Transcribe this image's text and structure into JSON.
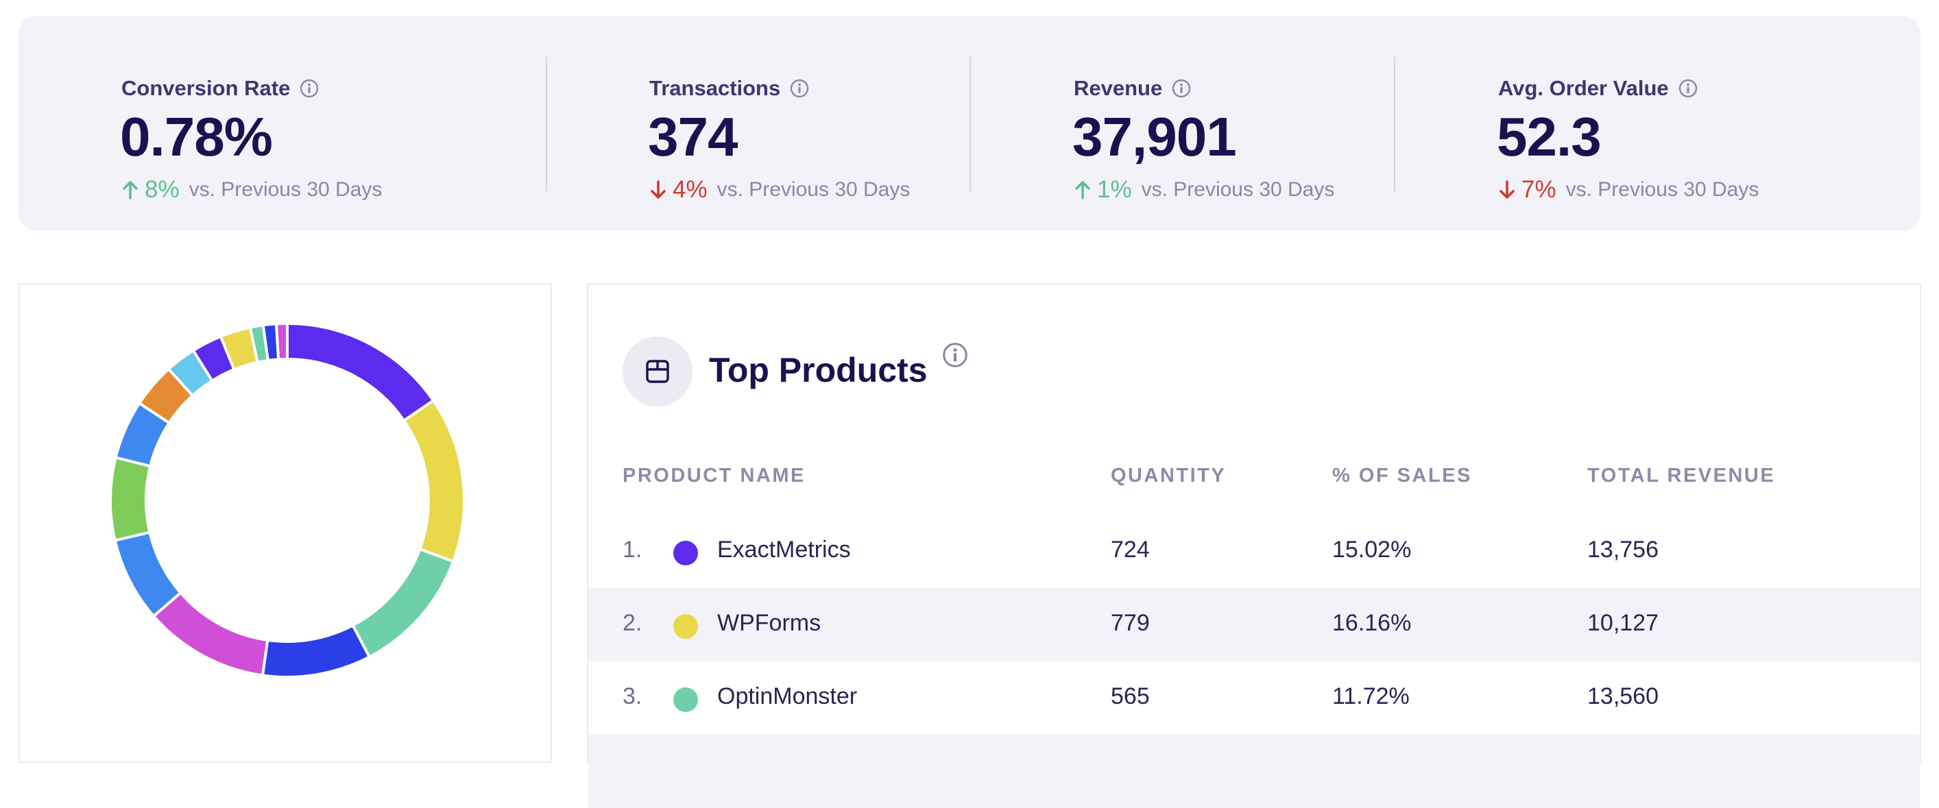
{
  "kpis": [
    {
      "label": "Conversion Rate",
      "value": "0.78%",
      "direction": "up",
      "change": "8%",
      "comparison": "vs. Previous 30 Days"
    },
    {
      "label": "Transactions",
      "value": "374",
      "direction": "down",
      "change": "4%",
      "comparison": "vs. Previous 30 Days"
    },
    {
      "label": "Revenue",
      "value": "37,901",
      "direction": "up",
      "change": "1%",
      "comparison": "vs. Previous 30 Days"
    },
    {
      "label": "Avg. Order Value",
      "value": "52.3",
      "direction": "down",
      "change": "7%",
      "comparison": "vs. Previous 30 Days"
    }
  ],
  "donut": {
    "segments": [
      {
        "color": "#5c2bee",
        "value": 15.6
      },
      {
        "color": "#e8d84a",
        "value": 15.3
      },
      {
        "color": "#6dd0a8",
        "value": 11.8
      },
      {
        "color": "#2b3fe6",
        "value": 10.0
      },
      {
        "color": "#cf4fd6",
        "value": 11.5
      },
      {
        "color": "#3f88f0",
        "value": 7.8
      },
      {
        "color": "#7dcc5a",
        "value": 7.6
      },
      {
        "color": "#3f88f0",
        "value": 5.4
      },
      {
        "color": "#e58b35",
        "value": 4.1
      },
      {
        "color": "#65c8ec",
        "value": 2.8
      },
      {
        "color": "#5c2bee",
        "value": 2.8
      },
      {
        "color": "#e8d84a",
        "value": 2.8
      },
      {
        "color": "#6dd0a8",
        "value": 1.2
      },
      {
        "color": "#2b3fe6",
        "value": 1.2
      },
      {
        "color": "#cf4fd6",
        "value": 1.0
      }
    ]
  },
  "products": {
    "title": "Top Products",
    "columns": [
      "PRODUCT NAME",
      "QUANTITY",
      "% OF SALES",
      "TOTAL REVENUE"
    ],
    "rows": [
      {
        "rank": "1.",
        "name": "ExactMetrics",
        "color": "#5c2bee",
        "quantity": "724",
        "percent": "15.02%",
        "revenue": "13,756"
      },
      {
        "rank": "2.",
        "name": "WPForms",
        "color": "#e8d84a",
        "quantity": "779",
        "percent": "16.16%",
        "revenue": "10,127"
      },
      {
        "rank": "3.",
        "name": "OptinMonster",
        "color": "#6dd0a8",
        "quantity": "565",
        "percent": "11.72%",
        "revenue": "13,560"
      }
    ]
  }
}
